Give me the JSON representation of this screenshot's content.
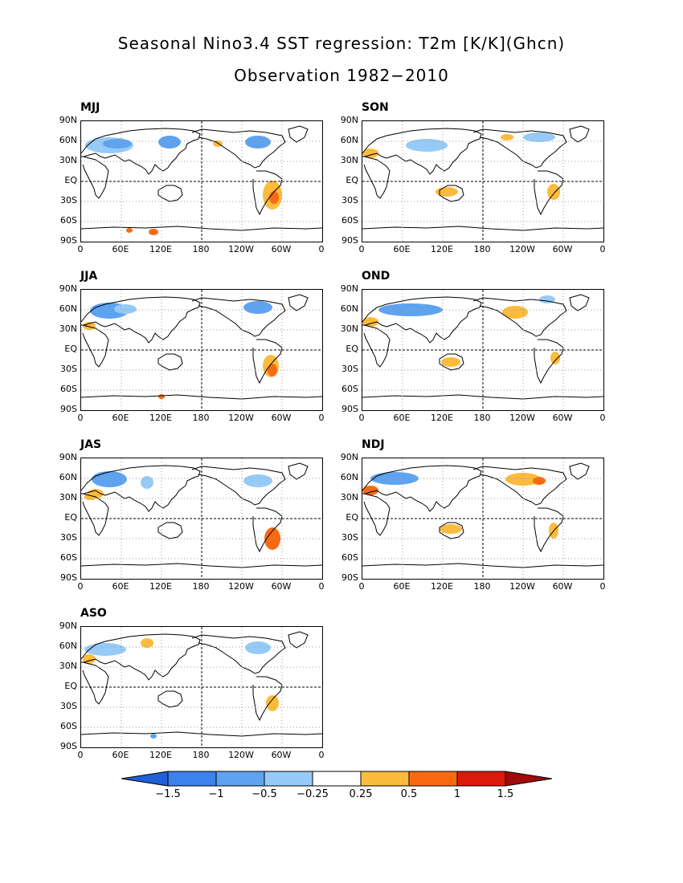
{
  "title_line1": "Seasonal Nino3.4 SST regression: T2m [K/K](Ghcn)",
  "title_line2": "Observation 1982−2010",
  "panels": [
    {
      "label": "MJJ"
    },
    {
      "label": "SON"
    },
    {
      "label": "JJA"
    },
    {
      "label": "OND"
    },
    {
      "label": "JAS"
    },
    {
      "label": "NDJ"
    },
    {
      "label": "ASO"
    }
  ],
  "lat_ticks": [
    "90N",
    "60N",
    "30N",
    "EQ",
    "30S",
    "60S",
    "90S"
  ],
  "lon_ticks": [
    "0",
    "60E",
    "120E",
    "180",
    "120W",
    "60W",
    "0"
  ],
  "colorbar": {
    "labels": [
      "−1.5",
      "−1",
      "−0.5",
      "−0.25",
      "0.25",
      "0.5",
      "1",
      "1.5"
    ],
    "colors": [
      "#1f5fd8",
      "#3b82ec",
      "#5ea3f0",
      "#96cbf7",
      "#ffffff",
      "#fbbb3c",
      "#f86a12",
      "#dc1a0a",
      "#a00a0a"
    ]
  },
  "colors": {
    "cool_light": "#96cbf7",
    "cool_mid": "#5ea3f0",
    "warm_light": "#fbbb3c",
    "warm_mid": "#f86a12"
  }
}
